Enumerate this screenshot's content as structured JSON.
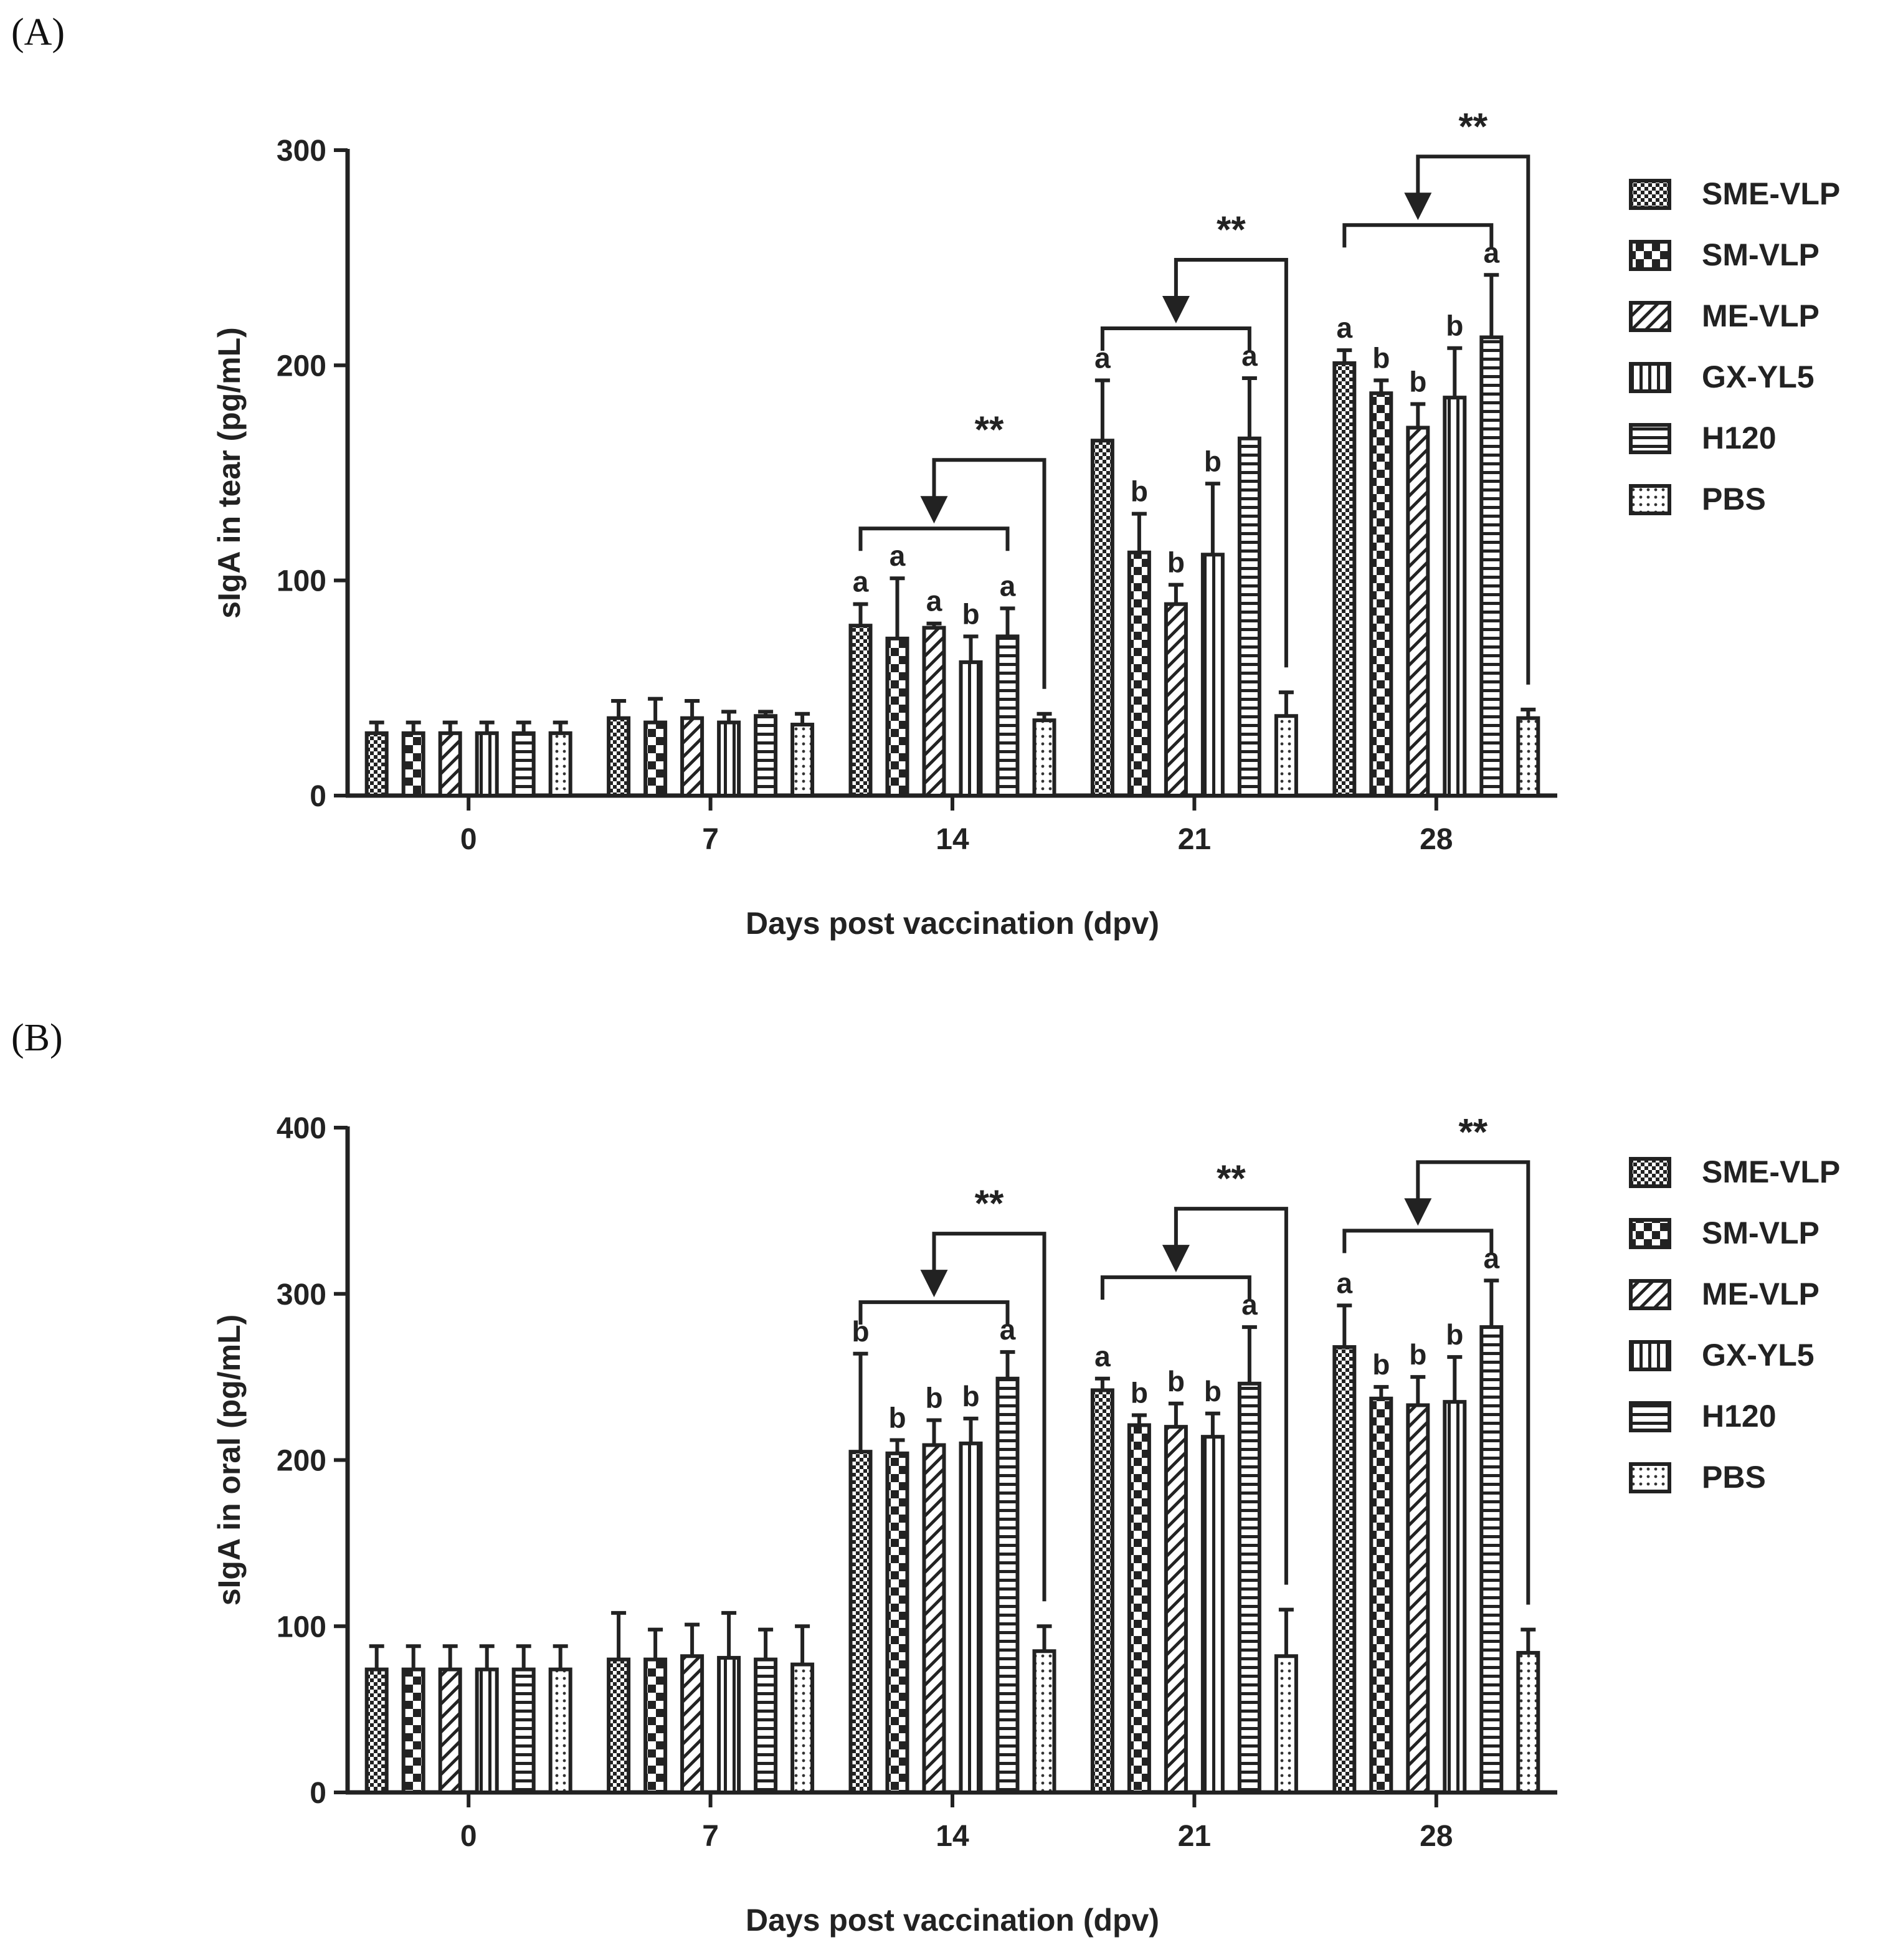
{
  "chart_data": [
    {
      "panel": "(A)",
      "type": "bar",
      "xlabel": "Days post vaccination (dpv)",
      "ylabel": "sIgA in tear (pg/mL)",
      "categories": [
        "0",
        "7",
        "14",
        "21",
        "28"
      ],
      "ylim": [
        0,
        300
      ],
      "yticks": [
        0,
        100,
        200,
        300
      ],
      "legend_position": "right",
      "series": [
        {
          "name": "SME-VLP",
          "pattern": "checker",
          "values": [
            29,
            36,
            79,
            165,
            201
          ],
          "errors": [
            5,
            8,
            10,
            28,
            6
          ],
          "letters": [
            "",
            "",
            "a",
            "a",
            "a"
          ]
        },
        {
          "name": "SM-VLP",
          "pattern": "bigcheck",
          "values": [
            29,
            34,
            73,
            113,
            187
          ],
          "errors": [
            5,
            11,
            28,
            18,
            6
          ],
          "letters": [
            "",
            "",
            "a",
            "b",
            "b"
          ]
        },
        {
          "name": "ME-VLP",
          "pattern": "diagonal",
          "values": [
            29,
            36,
            78,
            89,
            171
          ],
          "errors": [
            5,
            8,
            2,
            9,
            11
          ],
          "letters": [
            "",
            "",
            "a",
            "b",
            "b"
          ]
        },
        {
          "name": "GX-YL5",
          "pattern": "vstripe",
          "values": [
            29,
            34,
            62,
            112,
            185
          ],
          "errors": [
            5,
            5,
            12,
            33,
            23
          ],
          "letters": [
            "",
            "",
            "b",
            "b",
            "b"
          ]
        },
        {
          "name": "H120",
          "pattern": "hstripe",
          "values": [
            29,
            37,
            74,
            166,
            213
          ],
          "errors": [
            5,
            2,
            13,
            28,
            29
          ],
          "letters": [
            "",
            "",
            "a",
            "a",
            "a"
          ]
        },
        {
          "name": "PBS",
          "pattern": "dots",
          "values": [
            29,
            33,
            35,
            37,
            36
          ],
          "errors": [
            5,
            5,
            3,
            11,
            4
          ],
          "letters": [
            "",
            "",
            "",
            "",
            ""
          ]
        }
      ],
      "significance": [
        {
          "category": "14",
          "label": "**"
        },
        {
          "category": "21",
          "label": "**"
        },
        {
          "category": "28",
          "label": "**"
        }
      ]
    },
    {
      "panel": "(B)",
      "type": "bar",
      "xlabel": "Days post vaccination (dpv)",
      "ylabel": "sIgA in oral (pg/mL)",
      "categories": [
        "0",
        "7",
        "14",
        "21",
        "28"
      ],
      "ylim": [
        0,
        400
      ],
      "yticks": [
        0,
        100,
        200,
        300,
        400
      ],
      "legend_position": "right",
      "series": [
        {
          "name": "SME-VLP",
          "pattern": "checker",
          "values": [
            74,
            80,
            205,
            242,
            268
          ],
          "errors": [
            14,
            28,
            59,
            7,
            25
          ],
          "letters": [
            "",
            "",
            "b",
            "a",
            "a"
          ]
        },
        {
          "name": "SM-VLP",
          "pattern": "bigcheck",
          "values": [
            74,
            80,
            204,
            221,
            237
          ],
          "errors": [
            14,
            18,
            8,
            6,
            7
          ],
          "letters": [
            "",
            "",
            "b",
            "b",
            "b"
          ]
        },
        {
          "name": "ME-VLP",
          "pattern": "diagonal",
          "values": [
            74,
            82,
            209,
            220,
            233
          ],
          "errors": [
            14,
            19,
            15,
            14,
            17
          ],
          "letters": [
            "",
            "",
            "b",
            "b",
            "b"
          ]
        },
        {
          "name": "GX-YL5",
          "pattern": "vstripe",
          "values": [
            74,
            81,
            210,
            214,
            235
          ],
          "errors": [
            14,
            27,
            15,
            14,
            27
          ],
          "letters": [
            "",
            "",
            "b",
            "b",
            "b"
          ]
        },
        {
          "name": "H120",
          "pattern": "hstripe",
          "values": [
            74,
            80,
            249,
            246,
            280
          ],
          "errors": [
            14,
            18,
            16,
            34,
            28
          ],
          "letters": [
            "",
            "",
            "a",
            "a",
            "a"
          ]
        },
        {
          "name": "PBS",
          "pattern": "dots",
          "values": [
            74,
            77,
            85,
            82,
            84
          ],
          "errors": [
            14,
            23,
            15,
            28,
            14
          ],
          "letters": [
            "",
            "",
            "",
            "",
            ""
          ]
        }
      ],
      "significance": [
        {
          "category": "14",
          "label": "**"
        },
        {
          "category": "21",
          "label": "**"
        },
        {
          "category": "28",
          "label": "**"
        }
      ]
    }
  ]
}
